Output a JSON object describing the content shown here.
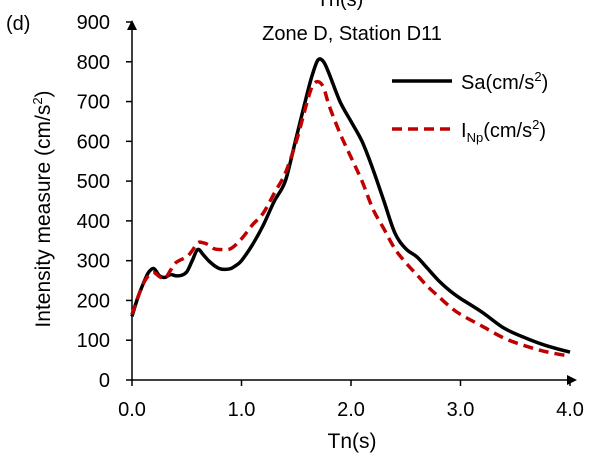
{
  "chart_data": {
    "type": "line",
    "panel_label": "(d)",
    "top_axis_label": "Tn(s)",
    "title": "Zone D, Station D11",
    "xlabel": "Tn(s)",
    "ylabel": "Intensity measure (cm/s",
    "ylabel_sup": "2",
    "ylabel_close": ")",
    "xlim": [
      0,
      4
    ],
    "ylim": [
      0,
      900
    ],
    "x_ticks": [
      0,
      1,
      2,
      3,
      4
    ],
    "x_tick_labels": [
      "0.0",
      "1.0",
      "2.0",
      "3.0",
      "4.0"
    ],
    "y_ticks": [
      0,
      100,
      200,
      300,
      400,
      500,
      600,
      700,
      800,
      900
    ],
    "y_tick_labels": [
      "0",
      "100",
      "200",
      "300",
      "400",
      "500",
      "600",
      "700",
      "800",
      "900"
    ],
    "grid": false,
    "legend_position": "top-right",
    "series": [
      {
        "key": "sa",
        "legend_main": "Sa(cm/s",
        "legend_sub": "",
        "legend_unit": "(cm/s",
        "legend_sup": "2",
        "legend_close": ")",
        "color": "#000000",
        "dashed": false,
        "x": [
          0.0,
          0.05,
          0.1,
          0.15,
          0.2,
          0.25,
          0.3,
          0.35,
          0.4,
          0.45,
          0.5,
          0.55,
          0.6,
          0.65,
          0.7,
          0.75,
          0.8,
          0.85,
          0.9,
          0.95,
          1.0,
          1.1,
          1.2,
          1.3,
          1.4,
          1.5,
          1.6,
          1.65,
          1.7,
          1.75,
          1.8,
          1.9,
          2.0,
          2.1,
          2.2,
          2.3,
          2.4,
          2.5,
          2.6,
          2.7,
          2.8,
          2.9,
          3.0,
          3.2,
          3.4,
          3.6,
          3.8,
          4.0
        ],
        "y": [
          160,
          205,
          240,
          270,
          280,
          262,
          258,
          265,
          262,
          263,
          272,
          300,
          328,
          315,
          300,
          288,
          280,
          278,
          280,
          288,
          300,
          340,
          390,
          450,
          500,
          610,
          720,
          770,
          805,
          800,
          770,
          700,
          650,
          600,
          530,
          450,
          370,
          330,
          310,
          280,
          250,
          225,
          205,
          170,
          130,
          105,
          85,
          70
        ]
      },
      {
        "key": "inp",
        "legend_main": "I",
        "legend_sub": "Np",
        "legend_unit": "(cm/s",
        "legend_sup": "2",
        "legend_close": ")",
        "color": "#c00000",
        "dashed": true,
        "x": [
          0.0,
          0.05,
          0.1,
          0.15,
          0.2,
          0.25,
          0.3,
          0.35,
          0.4,
          0.5,
          0.55,
          0.6,
          0.65,
          0.7,
          0.75,
          0.8,
          0.9,
          1.0,
          1.1,
          1.2,
          1.3,
          1.4,
          1.5,
          1.6,
          1.65,
          1.7,
          1.75,
          1.8,
          1.9,
          2.0,
          2.1,
          2.2,
          2.3,
          2.4,
          2.5,
          2.6,
          2.7,
          2.8,
          2.9,
          3.0,
          3.2,
          3.4,
          3.6,
          3.8,
          4.0
        ],
        "y": [
          165,
          205,
          240,
          262,
          270,
          260,
          255,
          275,
          295,
          310,
          325,
          345,
          345,
          340,
          330,
          328,
          330,
          355,
          390,
          420,
          470,
          520,
          600,
          700,
          740,
          750,
          735,
          690,
          620,
          560,
          500,
          430,
          380,
          330,
          295,
          265,
          235,
          210,
          185,
          165,
          135,
          105,
          85,
          70,
          60
        ]
      }
    ]
  }
}
